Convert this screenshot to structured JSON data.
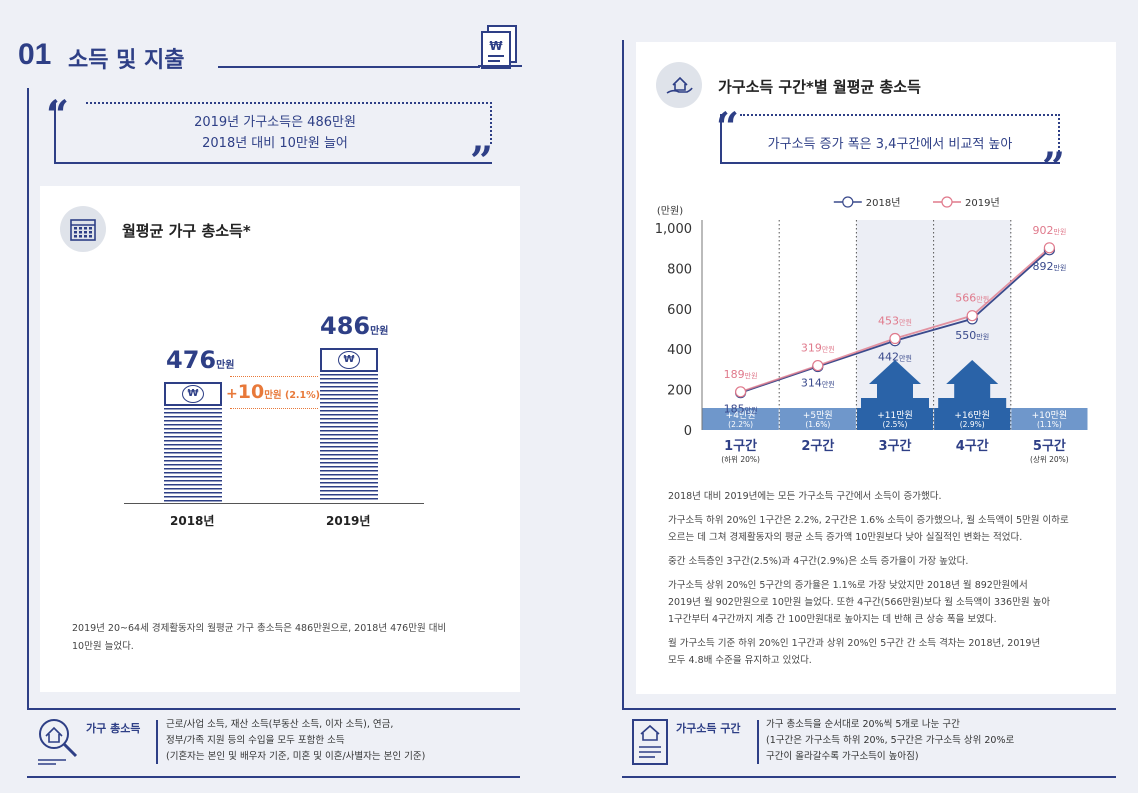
{
  "left": {
    "section_number": "01",
    "section_title": "소득 및 지출",
    "quote_line1": "2019년 가구소득은 486만원",
    "quote_line2": "2018년 대비 10만원 늘어",
    "card_title": "월평균 가구 총소득*",
    "value_2018": "476",
    "value_2019": "486",
    "unit": "만원",
    "diff_prefix": "+",
    "diff_value": "10",
    "diff_unit": "만원 (2.1%)",
    "label_2018": "2018년",
    "label_2019": "2019년",
    "note_line1": "2019년 20~64세 경제활동자의 월평균 가구 총소득은 486만원으로, 2018년 476만원 대비",
    "note_line2": "10만원 늘었다.",
    "def_term": "가구 총소득",
    "def_line1": "근로/사업 소득, 재산 소득(부동산 소득, 이자 소득), 연금,",
    "def_line2": "정부/가족 지원 등의 수입을 모두 포함한 소득",
    "def_line3": "(기혼자는 본인 및 배우자 기준, 미혼 및 이혼/사별자는 본인 기준)"
  },
  "right": {
    "card_title": "가구소득 구간*별 월평균 총소득",
    "quote": "가구소득 증가 폭은 3,4구간에서 비교적 높아",
    "p1": "2018년 대비 2019년에는 모든 가구소득 구간에서 소득이 증가했다.",
    "p2_line1": "가구소득 하위 20%인 1구간은 2.2%, 2구간은 1.6% 소득이 증가했으나, 월 소득액이 5만원 이하로",
    "p2_line2": "오르는 데 그쳐 경제활동자의 평균 소득 증가액 10만원보다 낮아 실질적인 변화는 적었다.",
    "p3": "중간 소득층인 3구간(2.5%)과 4구간(2.9%)은 소득 증가율이 가장 높았다.",
    "p4_line1": "가구소득 상위 20%인 5구간의 증가율은 1.1%로 가장 낮았지만 2018년 월 892만원에서",
    "p4_line2": "2019년 월 902만원으로 10만원 늘었다. 또한 4구간(566만원)보다 월 소득액이 336만원 높아",
    "p4_line3": "1구간부터 4구간까지 계층 간 100만원대로 높아지는 데 반해 큰 상승 폭을 보였다.",
    "p5_line1": "월 가구소득 기준 하위 20%인 1구간과 상위 20%인 5구간 간 소득 격차는 2018년, 2019년",
    "p5_line2": "모두 4.8배 수준을 유지하고 있었다.",
    "def_term": "가구소득 구간",
    "def_line1": "가구 총소득을 순서대로 20%씩 5개로 나눈 구간",
    "def_line2": "(1구간은 가구소득 하위 20%, 5구간은 가구소득 상위 20%로",
    "def_line3": "구간이 올라갈수록 가구소득이 높아짐)"
  },
  "chart_data": [
    {
      "type": "bar",
      "title": "월평균 가구 총소득*",
      "categories": [
        "2018년",
        "2019년"
      ],
      "values": [
        476,
        486
      ],
      "unit": "만원",
      "annotation": "+10만원 (2.1%)"
    },
    {
      "type": "line",
      "title": "가구소득 구간*별 월평균 총소득",
      "ylabel": "(만원)",
      "ylim": [
        0,
        1000
      ],
      "yticks": [
        "0",
        "200",
        "400",
        "600",
        "800",
        "1,000"
      ],
      "categories": [
        "1구간",
        "2구간",
        "3구간",
        "4구간",
        "5구간"
      ],
      "category_sub": [
        "(하위 20%)",
        "",
        "",
        "",
        "(상위 20%)"
      ],
      "series": [
        {
          "name": "2018년",
          "color": "#3a4a8c",
          "values": [
            185,
            314,
            442,
            550,
            892
          ],
          "labels": [
            "185",
            "314",
            "442",
            "550",
            "892"
          ]
        },
        {
          "name": "2019년",
          "color": "#e07a8c",
          "values": [
            189,
            319,
            453,
            566,
            902
          ],
          "labels": [
            "189",
            "319",
            "453",
            "566",
            "902"
          ]
        }
      ],
      "unit": "만원",
      "increase_labels": [
        "+4",
        "+5",
        "+11",
        "+16",
        "+10"
      ],
      "increase_pcts": [
        "(2.2%)",
        "(1.6%)",
        "(2.5%)",
        "(2.9%)",
        "(1.1%)"
      ],
      "legend_position": "top"
    }
  ]
}
